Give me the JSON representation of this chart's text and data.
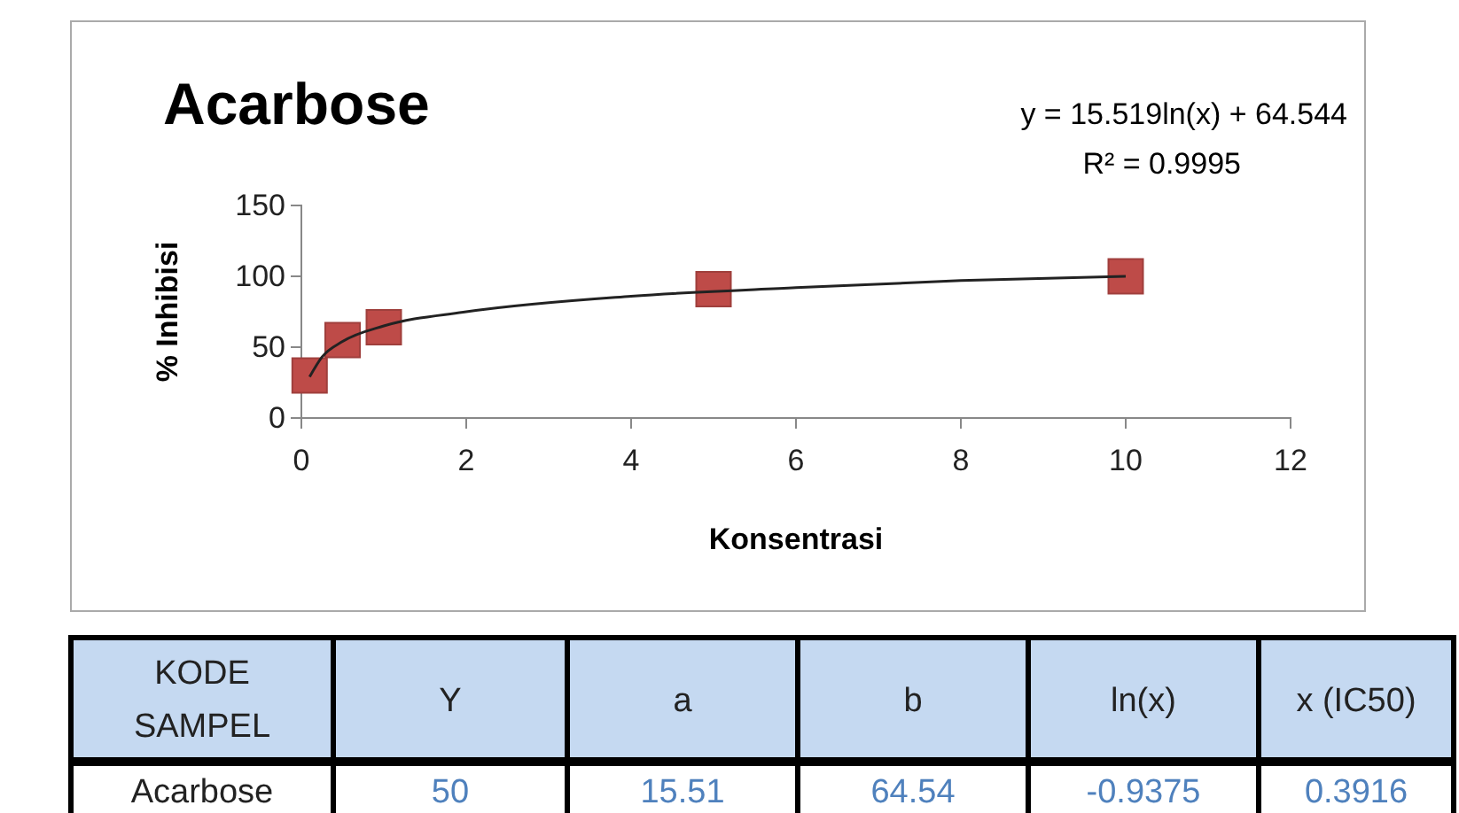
{
  "chart_data": {
    "type": "scatter",
    "title": "Acarbose",
    "xlabel": "Konsentrasi",
    "ylabel": "% Inhibisi",
    "xlim": [
      0,
      12
    ],
    "xticks": [
      0,
      2,
      4,
      6,
      8,
      10,
      12
    ],
    "ylim": [
      0,
      150
    ],
    "yticks": [
      0,
      50,
      100,
      150
    ],
    "grid": false,
    "marker": "square",
    "series": [
      {
        "color": "#be4b48",
        "x": [
          0.1,
          0.5,
          1,
          5,
          10
        ],
        "values": [
          30,
          55,
          64,
          91,
          100
        ]
      },
      {
        "type": "line",
        "color": "#222222",
        "line_style": "solid",
        "marker": "none",
        "x": [
          0.1,
          0.25,
          0.5,
          1,
          2,
          4,
          6,
          8,
          10
        ],
        "values": [
          29,
          43,
          54,
          65,
          75,
          86,
          92,
          97,
          100
        ]
      }
    ],
    "annotations": [
      "y = 15.519ln(x) + 64.544",
      "R² = 0.9995",
      "KODE SAMPEL",
      "Y",
      "a",
      "b",
      "ln(x)",
      "x (IC50)",
      "Acarbose",
      "50",
      "15.51",
      "64.54",
      "-0.9375",
      "0.3916"
    ]
  }
}
